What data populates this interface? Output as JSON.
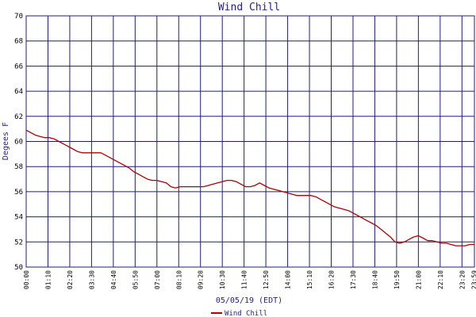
{
  "chart_data": {
    "type": "line",
    "title": "Wind Chill",
    "xlabel": "05/05/19 (EDT)",
    "ylabel": "Degees F",
    "ylim": [
      50,
      70
    ],
    "yticks": [
      50,
      52,
      54,
      56,
      58,
      60,
      62,
      64,
      66,
      68,
      70
    ],
    "xticks": [
      "00:00",
      "01:10",
      "02:20",
      "03:30",
      "04:40",
      "05:50",
      "07:00",
      "08:10",
      "09:20",
      "10:30",
      "11:40",
      "12:50",
      "14:00",
      "15:10",
      "16:20",
      "17:30",
      "18:40",
      "19:50",
      "21:00",
      "22:10",
      "23:20",
      "23:59"
    ],
    "grid": true,
    "colors": {
      "line": "#b00000",
      "grid": "#1f1f7a",
      "title": "#1f1f9a"
    },
    "series": [
      {
        "name": "Wind Chill",
        "x_minutes": [
          0,
          15,
          30,
          45,
          60,
          75,
          90,
          105,
          120,
          135,
          150,
          165,
          180,
          195,
          210,
          225,
          240,
          255,
          270,
          285,
          300,
          315,
          330,
          345,
          360,
          375,
          390,
          405,
          420,
          435,
          450,
          465,
          480,
          495,
          510,
          525,
          540,
          555,
          570,
          585,
          600,
          615,
          630,
          645,
          660,
          675,
          690,
          705,
          720,
          735,
          750,
          765,
          780,
          795,
          810,
          825,
          840,
          855,
          870,
          885,
          900,
          915,
          930,
          945,
          960,
          975,
          990,
          1005,
          1020,
          1035,
          1050,
          1065,
          1080,
          1095,
          1110,
          1125,
          1140,
          1155,
          1170,
          1185,
          1200,
          1215,
          1230,
          1245,
          1260,
          1275,
          1290,
          1305,
          1320,
          1335,
          1350,
          1365,
          1380,
          1395,
          1410,
          1425,
          1439
        ],
        "values": [
          60.9,
          60.7,
          60.5,
          60.4,
          60.3,
          60.3,
          60.2,
          60.0,
          59.8,
          59.6,
          59.4,
          59.2,
          59.1,
          59.1,
          59.1,
          59.1,
          59.1,
          58.9,
          58.7,
          58.5,
          58.3,
          58.1,
          57.9,
          57.6,
          57.4,
          57.2,
          57.0,
          56.9,
          56.9,
          56.8,
          56.7,
          56.4,
          56.3,
          56.4,
          56.4,
          56.4,
          56.4,
          56.4,
          56.4,
          56.5,
          56.6,
          56.7,
          56.8,
          56.9,
          56.9,
          56.8,
          56.6,
          56.4,
          56.4,
          56.5,
          56.7,
          56.5,
          56.3,
          56.2,
          56.1,
          56.0,
          55.9,
          55.8,
          55.7,
          55.7,
          55.7,
          55.7,
          55.6,
          55.4,
          55.2,
          55.0,
          54.8,
          54.7,
          54.6,
          54.5,
          54.3,
          54.1,
          53.9,
          53.7,
          53.5,
          53.3,
          53.0,
          52.7,
          52.4,
          52.0,
          51.9,
          52.0,
          52.2,
          52.4,
          52.5,
          52.3,
          52.1,
          52.1,
          52.0,
          51.9,
          51.9,
          51.8,
          51.7,
          51.7,
          51.7,
          51.8,
          51.8
        ]
      }
    ],
    "legend": {
      "position": "bottom-left",
      "label": "Wind Chill"
    }
  }
}
